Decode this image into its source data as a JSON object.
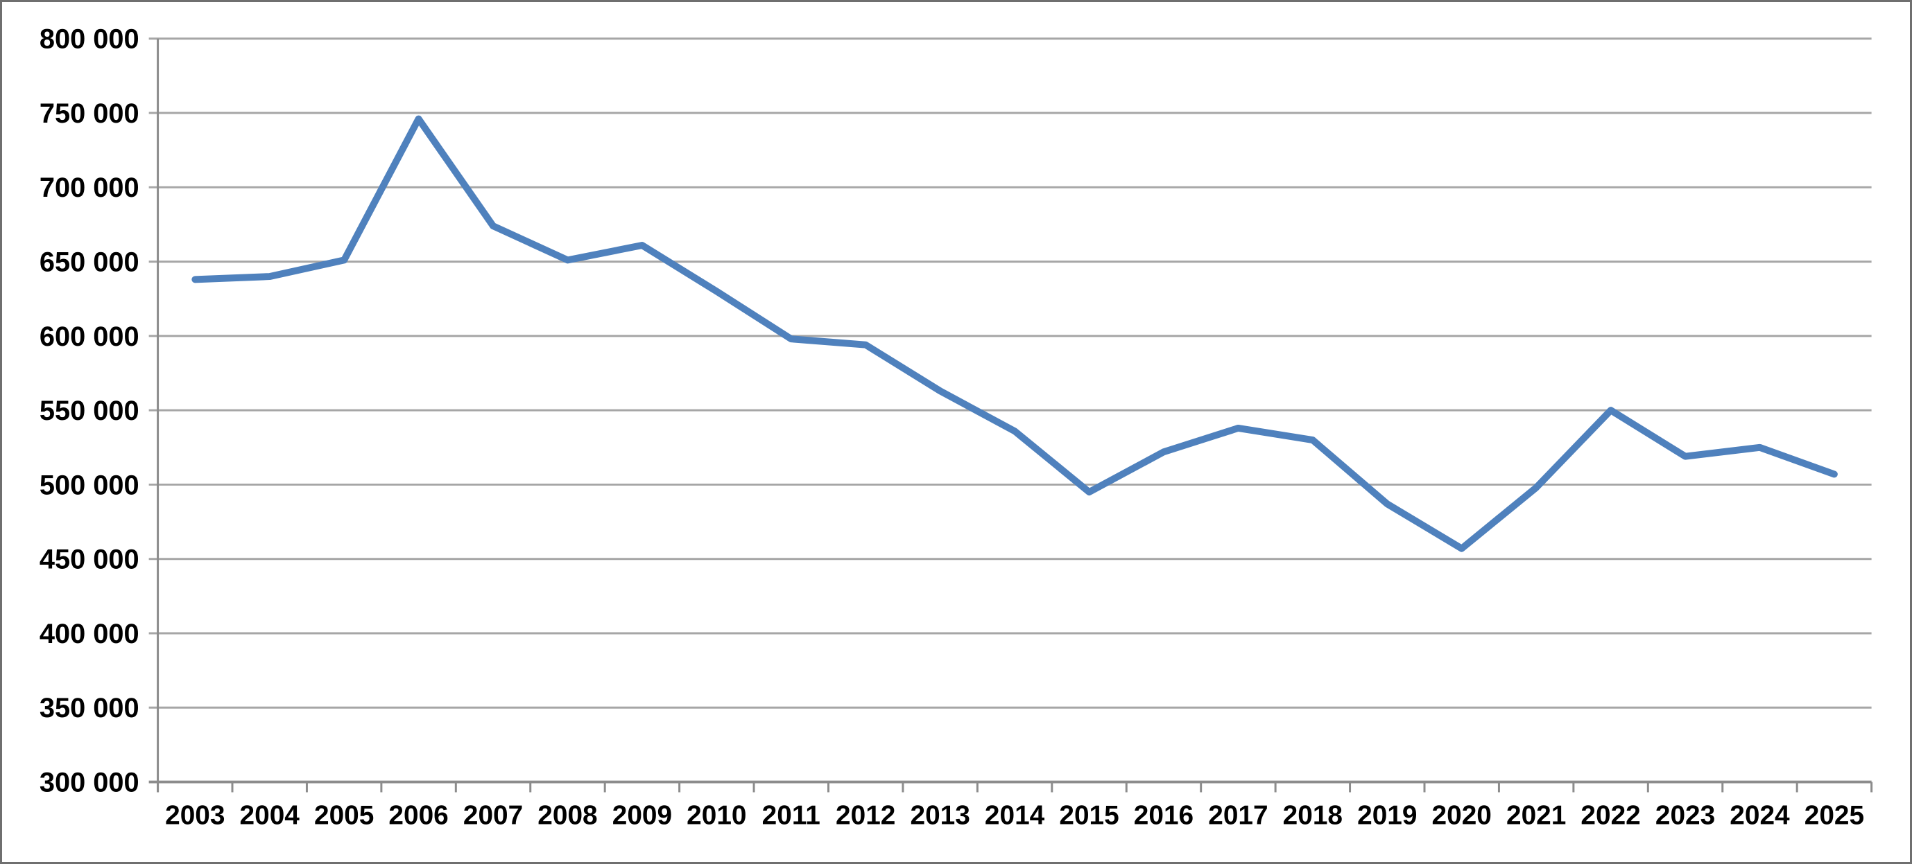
{
  "chart_data": {
    "type": "line",
    "title": "",
    "xlabel": "",
    "ylabel": "",
    "x": [
      "2003",
      "2004",
      "2005",
      "2006",
      "2007",
      "2008",
      "2009",
      "2010",
      "2011",
      "2012",
      "2013",
      "2014",
      "2015",
      "2016",
      "2017",
      "2018",
      "2019",
      "2020",
      "2021",
      "2022",
      "2023",
      "2024",
      "2025"
    ],
    "series": [
      {
        "name": "value",
        "values": [
          638000,
          640000,
          651000,
          746000,
          674000,
          651000,
          661000,
          630000,
          598000,
          594000,
          563000,
          536000,
          495000,
          522000,
          538000,
          530000,
          487000,
          457000,
          498000,
          550000,
          519000,
          525000,
          507000
        ]
      }
    ],
    "ylim": [
      300000,
      800000
    ],
    "ytick_step": 50000,
    "ytick_labels": [
      "300 000",
      "350 000",
      "400 000",
      "450 000",
      "500 000",
      "550 000",
      "600 000",
      "650 000",
      "700 000",
      "750 000",
      "800 000"
    ],
    "grid": true,
    "legend": false,
    "colors": {
      "line": "#4F81BD",
      "gridline": "#A6A6A6",
      "axis": "#8C8C8C",
      "label": "#000000",
      "frame_border": "#6F6F6F",
      "background": "#FFFFFF"
    }
  }
}
